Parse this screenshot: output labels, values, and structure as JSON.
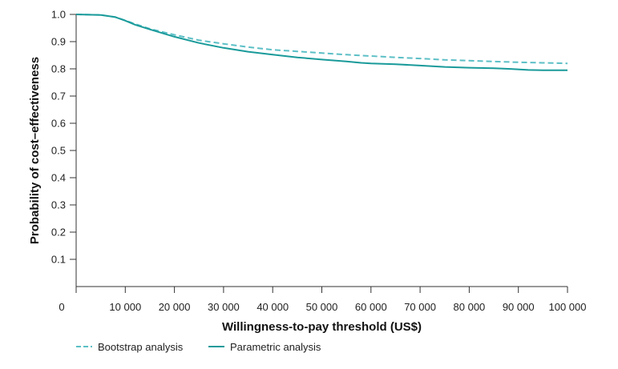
{
  "chart_data": {
    "type": "line",
    "title": "",
    "xlabel": "Willingness-to-pay threshold (US$)",
    "ylabel": "Probability of cost–effectiveness",
    "xlim": [
      0,
      100000
    ],
    "ylim": [
      0,
      1.0
    ],
    "x_ticks": [
      0,
      10000,
      20000,
      30000,
      40000,
      50000,
      60000,
      70000,
      80000,
      90000,
      100000
    ],
    "x_tick_labels": [
      "0",
      "10 000",
      "20 000",
      "30 000",
      "40 000",
      "50 000",
      "60 000",
      "70 000",
      "80 000",
      "90 000",
      "100 000"
    ],
    "y_ticks": [
      0.1,
      0.2,
      0.3,
      0.4,
      0.5,
      0.6,
      0.7,
      0.8,
      0.9,
      1.0
    ],
    "y_tick_labels": [
      "0.1",
      "0.2",
      "0.3",
      "0.4",
      "0.5",
      "0.6",
      "0.7",
      "0.8",
      "0.9",
      "1.0"
    ],
    "grid": false,
    "legend_position": "bottom-left",
    "series": [
      {
        "name": "Bootstrap analysis",
        "color": "#5cbfc6",
        "style": "dashed",
        "x": [
          0,
          5000,
          8000,
          10000,
          12000,
          15000,
          20000,
          25000,
          30000,
          35000,
          40000,
          45000,
          50000,
          55000,
          60000,
          65000,
          70000,
          75000,
          80000,
          85000,
          90000,
          95000,
          100000
        ],
        "y": [
          1.0,
          0.998,
          0.99,
          0.978,
          0.965,
          0.947,
          0.925,
          0.905,
          0.892,
          0.88,
          0.87,
          0.864,
          0.858,
          0.852,
          0.847,
          0.842,
          0.838,
          0.833,
          0.83,
          0.827,
          0.824,
          0.822,
          0.82
        ]
      },
      {
        "name": "Parametric analysis",
        "color": "#1a9a9a",
        "style": "solid",
        "x": [
          0,
          5000,
          8000,
          10000,
          12000,
          15000,
          20000,
          25000,
          30000,
          35000,
          40000,
          45000,
          50000,
          55000,
          58000,
          60000,
          65000,
          70000,
          75000,
          80000,
          85000,
          88000,
          92000,
          95000,
          100000
        ],
        "y": [
          1.0,
          0.998,
          0.99,
          0.977,
          0.962,
          0.945,
          0.918,
          0.895,
          0.877,
          0.863,
          0.852,
          0.842,
          0.834,
          0.827,
          0.822,
          0.82,
          0.817,
          0.812,
          0.807,
          0.804,
          0.802,
          0.8,
          0.796,
          0.795,
          0.795
        ]
      }
    ]
  }
}
